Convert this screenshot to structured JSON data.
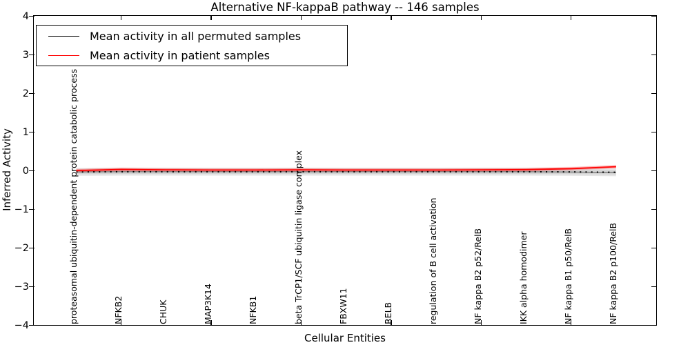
{
  "chart_data": {
    "type": "line",
    "title": "Alternative NF-kappaB pathway -- 146 samples",
    "xlabel": "Cellular Entities",
    "ylabel": "Inferred Activity",
    "ylim": [
      -4,
      4
    ],
    "grid": false,
    "legend_position": "upper left",
    "yticks": {
      "values": [
        4,
        3,
        2,
        1,
        0,
        -1,
        -2,
        -3,
        -4
      ],
      "labels": [
        "4",
        "3",
        "2",
        "1",
        "0",
        "−1",
        "−2",
        "−3",
        "−4"
      ]
    },
    "categories": [
      "proteasomal ubiquitin-dependent protein catabolic process",
      "NFKB2",
      "CHUK",
      "MAP3K14",
      "NFKB1",
      "beta TrCP1/SCF ubiquitin ligase complex",
      "FBXW11",
      "RELB",
      "regulation of B cell activation",
      "NF kappa B2 p52/RelB",
      "IKK alpha homodimer",
      "NF kappa B1 p50/RelB",
      "NF kappa B2 p100/RelB"
    ],
    "series": [
      {
        "name": "Mean activity in all permuted samples",
        "color": "#000000",
        "line_style": "dotted-markers",
        "values": [
          -0.03,
          -0.025,
          -0.025,
          -0.025,
          -0.025,
          -0.025,
          -0.025,
          -0.025,
          -0.025,
          -0.025,
          -0.025,
          -0.03,
          -0.04
        ],
        "band_halfwidth": 0.1,
        "band_color": "#bbbbbb"
      },
      {
        "name": "Mean activity in patient samples",
        "color": "#ff0000",
        "line_style": "solid",
        "values": [
          0.005,
          0.035,
          0.025,
          0.02,
          0.02,
          0.025,
          0.02,
          0.02,
          0.02,
          0.025,
          0.03,
          0.055,
          0.105
        ],
        "band_halfwidth": 0.05,
        "band_color": "#ffb0b0"
      }
    ]
  }
}
